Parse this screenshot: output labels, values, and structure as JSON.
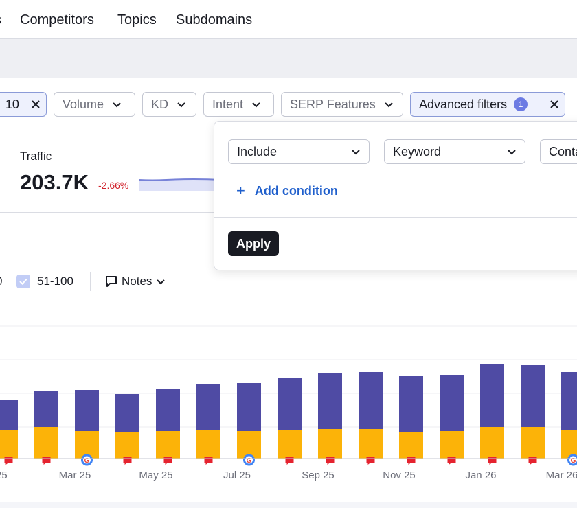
{
  "nav": {
    "tabs": [
      "s",
      "Competitors",
      "Topics",
      "Subdomains"
    ]
  },
  "filters": {
    "position_value": "10",
    "volume": "Volume",
    "kd": "KD",
    "intent": "Intent",
    "serp": "SERP Features",
    "advanced": "Advanced filters",
    "advanced_count": "1"
  },
  "traffic": {
    "label": "Traffic",
    "value": "203.7K",
    "change": "-2.66%"
  },
  "legend": {
    "cut_label": "0",
    "checkbox_label": "51-100",
    "notes": "Notes"
  },
  "popover": {
    "include": "Include",
    "keyword": "Keyword",
    "contains": "Conta",
    "add_condition": "Add condition",
    "apply": "Apply"
  },
  "colors": {
    "bar_top": "#4f4ba4",
    "bar_bottom": "#fcb308",
    "flag": "#e5232f",
    "accent_link": "#1f5fcc",
    "negative": "#d1212b"
  },
  "chart_data": {
    "type": "bar",
    "x_labels": [
      "25",
      "Mar 25",
      "May 25",
      "Jul 25",
      "Sep 25",
      "Nov 25",
      "Jan 26",
      "Mar 26"
    ],
    "series": [
      {
        "name": "51-100",
        "values": [
          44,
          53,
          60,
          56,
          61,
          67,
          70,
          77,
          82,
          83,
          81,
          82,
          92,
          91,
          84
        ]
      },
      {
        "name": "",
        "values": [
          42,
          46,
          40,
          38,
          40,
          41,
          40,
          41,
          43,
          43,
          39,
          40,
          46,
          46,
          42
        ]
      }
    ],
    "markers": [
      "flag",
      "flag",
      "google",
      "flag",
      "flag",
      "flag",
      "google",
      "flag",
      "flag",
      "flag",
      "flag",
      "flag",
      "flag",
      "flag",
      "google"
    ]
  }
}
